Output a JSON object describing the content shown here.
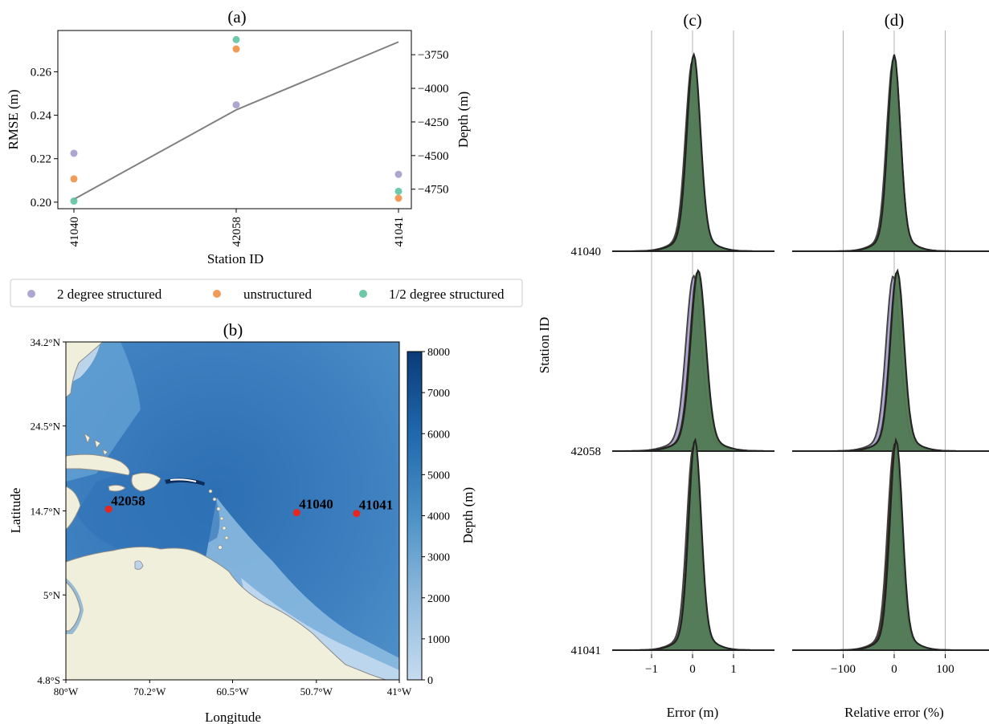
{
  "colors": {
    "two_degree": "#9e98c8",
    "unstructured": "#ee8a3c",
    "half_degree": "#55bf99",
    "depth_line": "#808080",
    "ocean_deep": "#0d3f7d",
    "ocean_shallow": "#c6dbef",
    "land": "#efefdc",
    "station_marker": "#e8251e",
    "ridge_fill": "#4e7c54",
    "ridge_edge": "#222222"
  },
  "legend": {
    "items": [
      {
        "label": "2 degree structured",
        "color": "#9e98c8"
      },
      {
        "label": "unstructured",
        "color": "#ee8a3c"
      },
      {
        "label": "1/2 degree structured",
        "color": "#55bf99"
      }
    ]
  },
  "chart_data": [
    {
      "panel": "(a)",
      "type": "scatter",
      "title": "(a)",
      "xlabel": "Station ID",
      "ylabel": "RMSE (m)",
      "y2label": "Depth (m)",
      "categories": [
        "41040",
        "42058",
        "41041"
      ],
      "ylim": [
        0.197,
        0.279
      ],
      "yticks": [
        "0.20",
        "0.22",
        "0.24",
        "0.26"
      ],
      "y2lim": [
        -4895,
        -3570
      ],
      "y2ticks": [
        "−4750",
        "−4500",
        "−4250",
        "−4000",
        "−3750"
      ],
      "series": [
        {
          "name": "2 degree structured",
          "values": [
            0.2225,
            0.2448,
            0.2128
          ]
        },
        {
          "name": "unstructured",
          "values": [
            0.2107,
            0.2705,
            0.2018
          ]
        },
        {
          "name": "1/2 degree structured",
          "values": [
            0.2005,
            0.2748,
            0.205
          ]
        }
      ],
      "depth_line": [
        -4825,
        -4160,
        -3655
      ]
    },
    {
      "panel": "(b)",
      "type": "heatmap",
      "title": "(b)",
      "xlabel": "Longitude",
      "ylabel": "Latitude",
      "xticks": [
        "80°W",
        "70.2°W",
        "60.5°W",
        "50.7°W",
        "41°W"
      ],
      "yticks": [
        "4.8°S",
        "5°N",
        "14.7°N",
        "24.5°N",
        "34.2°N"
      ],
      "colorbar_label": "Depth (m)",
      "colorbar_range": [
        0,
        8000
      ],
      "colorbar_ticks": [
        "0",
        "1000",
        "2000",
        "3000",
        "4000",
        "5000",
        "6000",
        "7000",
        "8000"
      ],
      "stations": [
        {
          "id": "42058",
          "lon": -75.0,
          "lat": 14.9
        },
        {
          "id": "41040",
          "lon": -53.0,
          "lat": 14.5
        },
        {
          "id": "41041",
          "lon": -46.0,
          "lat": 14.4
        }
      ]
    },
    {
      "panel": "(c)",
      "type": "area",
      "title": "(c)",
      "xlabel": "Error (m)",
      "ylabel": "Station ID",
      "xlim": [
        -2,
        2
      ],
      "xticks": [
        "−1",
        "0",
        "1"
      ],
      "rows": [
        "41040",
        "42058",
        "41041"
      ]
    },
    {
      "panel": "(d)",
      "type": "area",
      "title": "(d)",
      "xlabel": "Relative error (%)",
      "xlim": [
        -200,
        200
      ],
      "xticks": [
        "−100",
        "0",
        "100"
      ],
      "rows": [
        "41040",
        "42058",
        "41041"
      ]
    }
  ]
}
